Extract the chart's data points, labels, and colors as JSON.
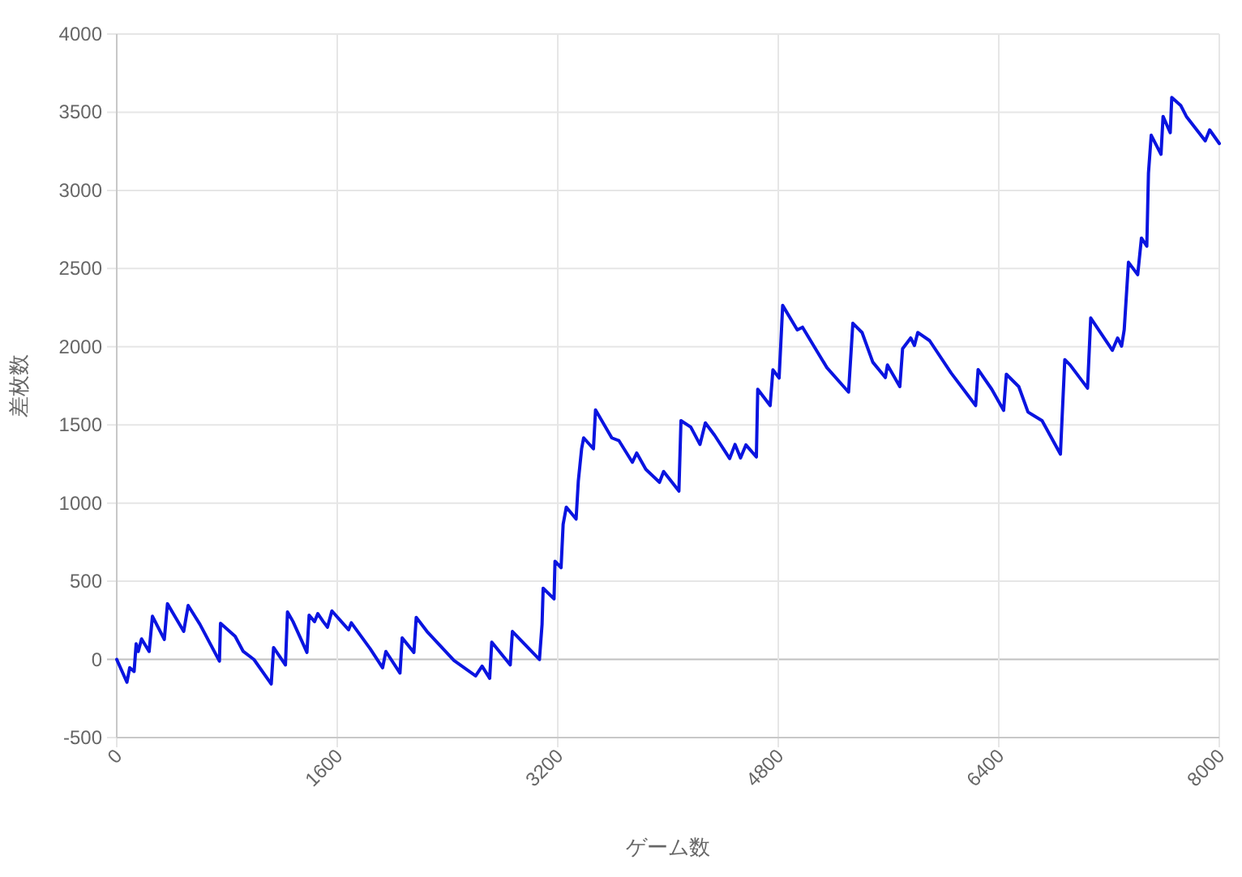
{
  "chart_data": {
    "type": "line",
    "xlabel": "ゲーム数",
    "ylabel": "差枚数",
    "xlim": [
      0,
      8000
    ],
    "xticks": [
      0,
      1600,
      3200,
      4800,
      6400,
      8000
    ],
    "ylim": [
      -500,
      4000
    ],
    "yticks": [
      -500,
      0,
      500,
      1000,
      1500,
      2000,
      2500,
      3000,
      3500,
      4000
    ],
    "grid": true,
    "series": [
      {
        "color": "#0a14e0",
        "x": [
          0,
          74,
          94,
          126,
          141,
          156,
          180,
          235,
          259,
          345,
          368,
          486,
          518,
          604,
          745,
          753,
          859,
          918,
          996,
          1121,
          1138,
          1224,
          1239,
          1279,
          1380,
          1396,
          1435,
          1459,
          1498,
          1529,
          1561,
          1682,
          1702,
          1839,
          1929,
          1953,
          2055,
          2071,
          2156,
          2173,
          2251,
          2447,
          2604,
          2651,
          2706,
          2721,
          2855,
          2871,
          3067,
          3086,
          3094,
          3173,
          3180,
          3224,
          3239,
          3262,
          3333,
          3349,
          3373,
          3388,
          3459,
          3474,
          3592,
          3644,
          3741,
          3773,
          3839,
          3938,
          3968,
          4079,
          4094,
          4165,
          4232,
          4271,
          4338,
          4447,
          4486,
          4526,
          4565,
          4641,
          4651,
          4741,
          4761,
          4806,
          4832,
          4938,
          4976,
          5153,
          5310,
          5341,
          5408,
          5486,
          5577,
          5592,
          5682,
          5702,
          5761,
          5788,
          5812,
          5898,
          6055,
          6232,
          6250,
          6349,
          6435,
          6455,
          6545,
          6612,
          6714,
          6847,
          6879,
          6918,
          7044,
          7067,
          7224,
          7262,
          7291,
          7310,
          7341,
          7408,
          7435,
          7474,
          7486,
          7506,
          7577,
          7592,
          7644,
          7655,
          7721,
          7761,
          7898,
          7930,
          8000
        ],
        "values": [
          0,
          -146,
          -53,
          -77,
          100,
          51,
          131,
          51,
          276,
          128,
          356,
          179,
          345,
          224,
          -11,
          231,
          148,
          51,
          -1,
          -157,
          76,
          -35,
          304,
          242,
          45,
          283,
          242,
          293,
          242,
          206,
          310,
          190,
          234,
          68,
          -53,
          51,
          -87,
          138,
          45,
          269,
          179,
          -7,
          -105,
          -43,
          -121,
          110,
          -35,
          179,
          -1,
          224,
          455,
          387,
          628,
          587,
          864,
          974,
          898,
          1140,
          1347,
          1417,
          1347,
          1596,
          1417,
          1399,
          1261,
          1320,
          1216,
          1133,
          1202,
          1077,
          1527,
          1486,
          1375,
          1513,
          1434,
          1285,
          1375,
          1289,
          1372,
          1295,
          1728,
          1624,
          1852,
          1800,
          2264,
          2108,
          2125,
          1866,
          1710,
          2150,
          2091,
          1901,
          1803,
          1883,
          1745,
          1987,
          2056,
          2008,
          2091,
          2039,
          1831,
          1624,
          1854,
          1728,
          1593,
          1824,
          1745,
          1582,
          1527,
          1313,
          1917,
          1883,
          1735,
          2184,
          1977,
          2056,
          2004,
          2108,
          2540,
          2461,
          2695,
          2643,
          3110,
          3353,
          3231,
          3473,
          3369,
          3594,
          3542,
          3473,
          3317,
          3387,
          3300
        ]
      }
    ]
  }
}
